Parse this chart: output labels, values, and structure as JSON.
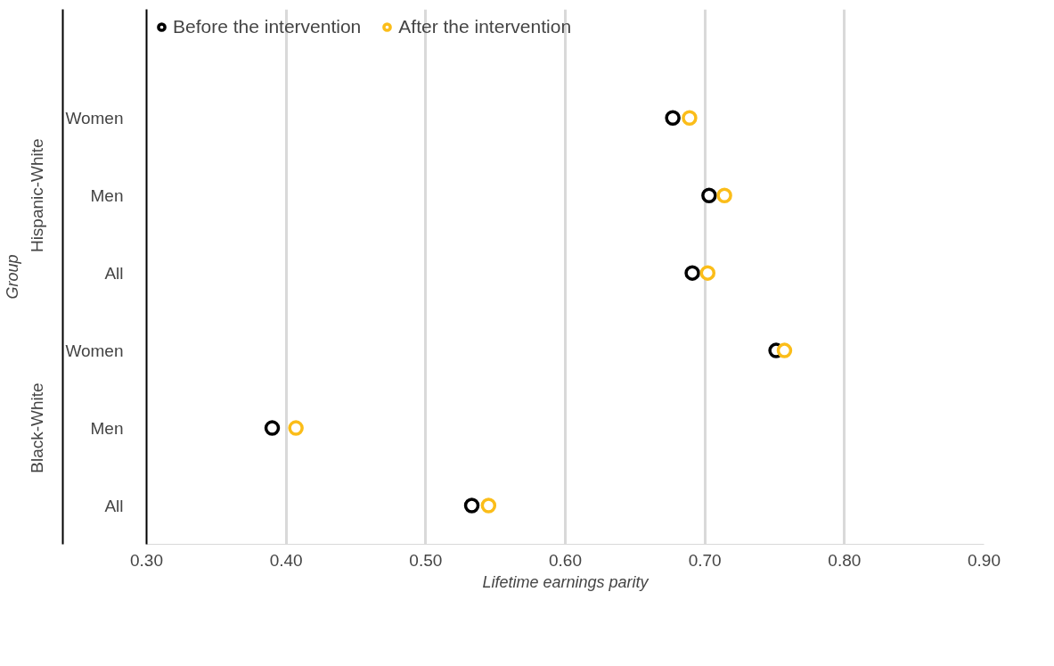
{
  "chart_data": {
    "type": "scatter",
    "orientation": "horizontal",
    "ylabel": "Group",
    "xlabel": "Lifetime earnings parity",
    "categories": [
      "Women",
      "Men",
      "All",
      "Women",
      "Men",
      "All"
    ],
    "annotations": [
      "Hispanic-White",
      "Black-White"
    ],
    "series": [
      {
        "name": "Before the intervention",
        "color": "#000000",
        "values": [
          0.677,
          0.703,
          0.691,
          0.751,
          0.39,
          0.533
        ]
      },
      {
        "name": "After the intervention",
        "color": "#fbbd19",
        "values": [
          0.689,
          0.714,
          0.702,
          0.757,
          0.407,
          0.545
        ]
      }
    ],
    "xlim": [
      0.3,
      0.9
    ],
    "xticks": [
      {
        "value": 0.3,
        "label": "0.30"
      },
      {
        "value": 0.4,
        "label": "0.40"
      },
      {
        "value": 0.5,
        "label": "0.50"
      },
      {
        "value": 0.6,
        "label": "0.60"
      },
      {
        "value": 0.7,
        "label": "0.70"
      },
      {
        "value": 0.8,
        "label": "0.80"
      },
      {
        "value": 0.9,
        "label": "0.90"
      }
    ],
    "grid": "x",
    "legend": "top left",
    "marker": "circle"
  }
}
